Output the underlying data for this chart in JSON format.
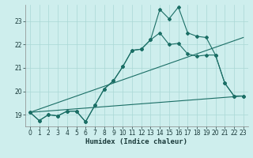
{
  "xlabel": "Humidex (Indice chaleur)",
  "background_color": "#ceeeed",
  "grid_color": "#aad8d6",
  "line_color": "#1a6e65",
  "xlim": [
    -0.5,
    23.5
  ],
  "ylim": [
    18.5,
    23.7
  ],
  "yticks": [
    19,
    20,
    21,
    22,
    23
  ],
  "xticks": [
    0,
    1,
    2,
    3,
    4,
    5,
    6,
    7,
    8,
    9,
    10,
    11,
    12,
    13,
    14,
    15,
    16,
    17,
    18,
    19,
    20,
    21,
    22,
    23
  ],
  "series": [
    {
      "x": [
        0,
        1,
        2,
        3,
        4,
        5,
        6,
        7,
        8,
        9,
        10,
        11,
        12,
        13,
        14,
        15,
        16,
        17,
        18,
        19,
        20,
        21,
        22,
        23
      ],
      "y": [
        19.1,
        18.75,
        19.0,
        18.95,
        19.15,
        19.15,
        18.7,
        19.4,
        20.1,
        20.45,
        21.05,
        21.75,
        21.8,
        22.2,
        23.5,
        23.1,
        23.6,
        22.5,
        22.35,
        22.3,
        21.55,
        20.35,
        19.8,
        19.8
      ],
      "marker": "D",
      "markersize": 2.0,
      "linewidth": 0.8,
      "zorder": 3
    },
    {
      "x": [
        0,
        1,
        2,
        3,
        4,
        5,
        6,
        7,
        8,
        9,
        10,
        11,
        12,
        13,
        14,
        15,
        16,
        17,
        18,
        19,
        20,
        21,
        22,
        23
      ],
      "y": [
        19.1,
        18.75,
        19.0,
        18.95,
        19.15,
        19.15,
        18.7,
        19.4,
        20.1,
        20.45,
        21.05,
        21.75,
        21.8,
        22.2,
        22.5,
        22.0,
        22.05,
        21.6,
        21.5,
        21.55,
        21.55,
        20.35,
        19.8,
        19.8
      ],
      "marker": "D",
      "markersize": 2.0,
      "linewidth": 0.8,
      "zorder": 3
    },
    {
      "x": [
        0,
        23
      ],
      "y": [
        19.1,
        22.3
      ],
      "marker": null,
      "markersize": 0,
      "linewidth": 0.8,
      "zorder": 2
    },
    {
      "x": [
        0,
        23
      ],
      "y": [
        19.1,
        19.8
      ],
      "marker": null,
      "markersize": 0,
      "linewidth": 0.8,
      "zorder": 2
    }
  ]
}
